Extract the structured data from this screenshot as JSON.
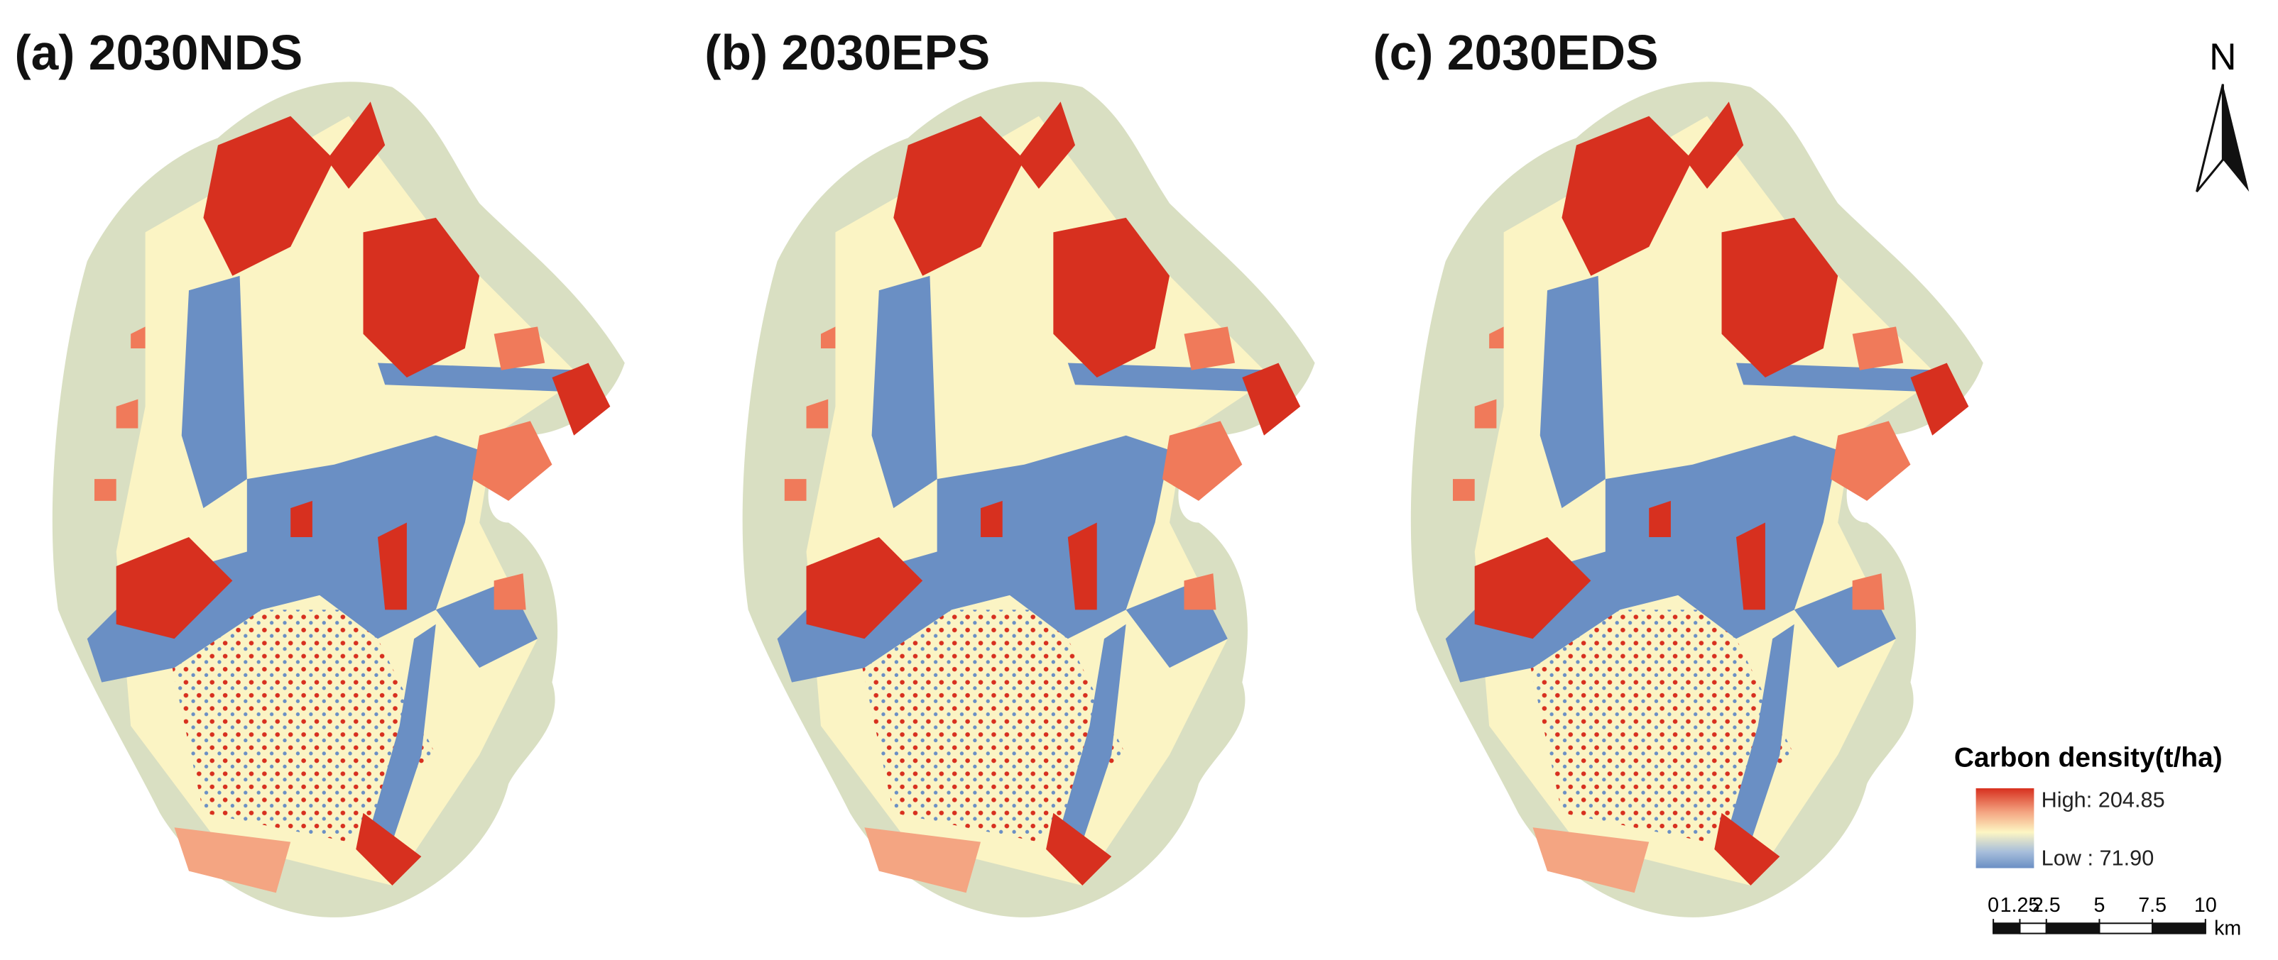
{
  "panels": [
    {
      "title": "(a) 2030NDS"
    },
    {
      "title": "(b) 2030EPS"
    },
    {
      "title": "(c) 2030EDS"
    }
  ],
  "north_arrow": {
    "label": "N"
  },
  "legend": {
    "title": "Carbon density(t/ha)",
    "high": "High: 204.85",
    "low": "Low : 71.90"
  },
  "scale_bar": {
    "ticks": [
      0,
      1.25,
      2.5,
      5,
      7.5,
      10
    ],
    "unit": "km"
  }
}
